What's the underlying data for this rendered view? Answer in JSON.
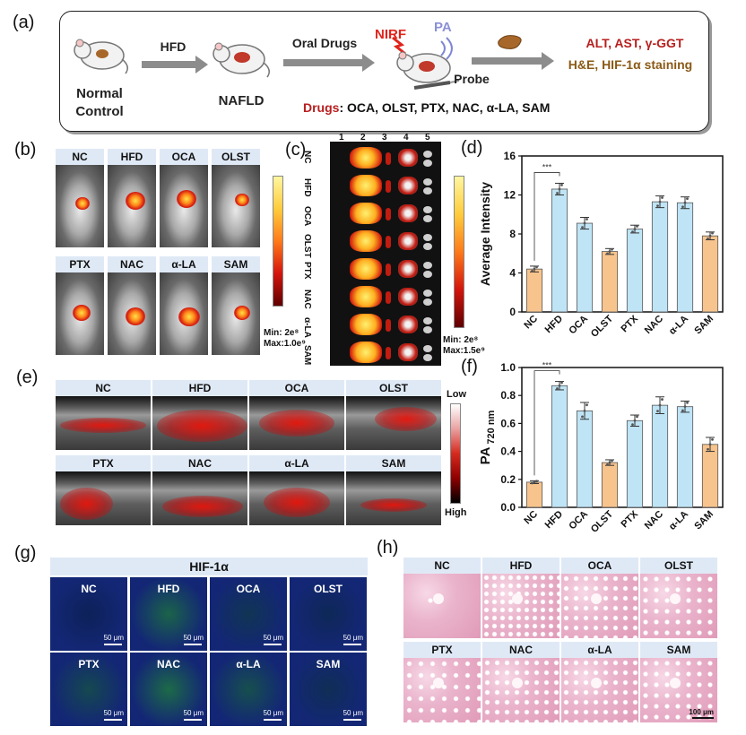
{
  "panel_labels": {
    "a": "(a)",
    "b": "(b)",
    "c": "(c)",
    "d": "(d)",
    "e": "(e)",
    "f": "(f)",
    "g": "(g)",
    "h": "(h)"
  },
  "schematic": {
    "normal_line1": "Normal",
    "normal_line2": "Control",
    "hfd": "HFD",
    "nafld": "NAFLD",
    "oral_drugs": "Oral Drugs",
    "nirf": "NIRF",
    "pa": "PA",
    "probe": "Probe",
    "drugs_prefix": "Drugs",
    "drugs_list": ": OCA, OLST, PTX, NAC, α-LA, SAM",
    "readout1": "ALT, AST, γ-GGT",
    "readout2": "H&E, HIF-1α staining",
    "colors": {
      "red": "#b81e1e",
      "brown": "#8a5a16"
    }
  },
  "groups": [
    "NC",
    "HFD",
    "OCA",
    "OLST",
    "PTX",
    "NAC",
    "α-LA",
    "SAM"
  ],
  "panel_b": {
    "min": "Min: 2e⁸",
    "max": "Max:1.0e⁹"
  },
  "panel_c": {
    "columns": [
      "1",
      "2",
      "3",
      "4",
      "5"
    ],
    "min": "Min: 2e⁸",
    "max": "Max:1.5e⁹"
  },
  "panel_e": {
    "low": "Low",
    "high": "High"
  },
  "panel_g": {
    "title": "HIF-1α",
    "scalebar": "50 μm"
  },
  "panel_h": {
    "scalebar": "100 μm"
  },
  "chart_data": [
    {
      "id": "d",
      "type": "bar",
      "categories": [
        "NC",
        "HFD",
        "OCA",
        "OLST",
        "PTX",
        "NAC",
        "α-LA",
        "SAM"
      ],
      "values": [
        4.4,
        12.6,
        9.1,
        6.2,
        8.5,
        11.3,
        11.2,
        7.8
      ],
      "errors": [
        0.3,
        0.6,
        0.6,
        0.3,
        0.4,
        0.6,
        0.6,
        0.4
      ],
      "ylabel": "Average Intensity",
      "ylim": [
        0,
        16
      ],
      "yticks": [
        0,
        4,
        8,
        12,
        16
      ],
      "significance": "***",
      "colors": [
        "#f7c48d",
        "#bfe4f5",
        "#bfe4f5",
        "#f7c48d",
        "#bfe4f5",
        "#bfe4f5",
        "#bfe4f5",
        "#f7c48d"
      ]
    },
    {
      "id": "f",
      "type": "bar",
      "categories": [
        "NC",
        "HFD",
        "OCA",
        "OLST",
        "PTX",
        "NAC",
        "α-LA",
        "SAM"
      ],
      "values": [
        0.18,
        0.87,
        0.69,
        0.32,
        0.62,
        0.73,
        0.72,
        0.45
      ],
      "errors": [
        0.01,
        0.03,
        0.06,
        0.02,
        0.04,
        0.06,
        0.04,
        0.05
      ],
      "ylabel": "PA",
      "ylabel_sub": "720 nm",
      "ylim": [
        0.0,
        1.0
      ],
      "yticks": [
        0.0,
        0.2,
        0.4,
        0.6,
        0.8,
        1.0
      ],
      "significance": "***",
      "colors": [
        "#f7c48d",
        "#bfe4f5",
        "#bfe4f5",
        "#f7c48d",
        "#bfe4f5",
        "#bfe4f5",
        "#bfe4f5",
        "#f7c48d"
      ]
    }
  ]
}
